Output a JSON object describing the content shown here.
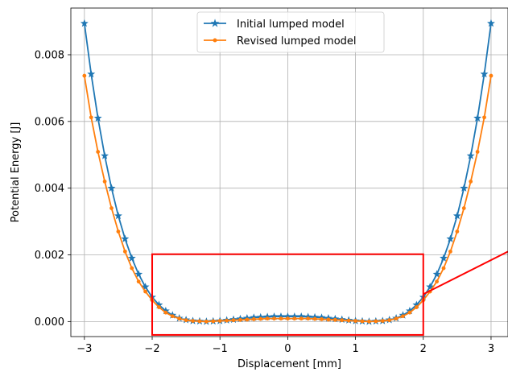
{
  "chart_data": {
    "type": "line",
    "xlabel": "Displacement [mm]",
    "ylabel": "Potential Energy [J]",
    "xlim": [
      -3.2,
      3.25
    ],
    "ylim": [
      -0.00045,
      0.0094
    ],
    "xticks": [
      -3,
      -2,
      -1,
      0,
      1,
      2,
      3
    ],
    "xtick_labels": [
      "−3",
      "−2",
      "−1",
      "0",
      "1",
      "2",
      "3"
    ],
    "yticks": [
      0.0,
      0.002,
      0.004,
      0.006,
      0.008
    ],
    "ytick_labels": [
      "0.000",
      "0.002",
      "0.004",
      "0.006",
      "0.008"
    ],
    "grid": true,
    "legend_position": "top-center",
    "x_points": [
      -3.0,
      -2.9,
      -2.8,
      -2.7,
      -2.6,
      -2.5,
      -2.4,
      -2.3,
      -2.2,
      -2.1,
      -2.0,
      -1.9,
      -1.8,
      -1.7,
      -1.6,
      -1.5,
      -1.4,
      -1.3,
      -1.2,
      -1.1,
      -1.0,
      -0.9,
      -0.8,
      -0.7,
      -0.6,
      -0.5,
      -0.4,
      -0.3,
      -0.2,
      -0.1,
      0.0,
      0.1,
      0.2,
      0.3,
      0.4,
      0.5,
      0.6,
      0.7,
      0.8,
      0.9,
      1.0,
      1.1,
      1.2,
      1.3,
      1.4,
      1.5,
      1.6,
      1.7,
      1.8,
      1.9,
      2.0,
      2.1,
      2.2,
      2.3,
      2.4,
      2.5,
      2.6,
      2.7,
      2.8,
      2.9,
      3.0
    ],
    "series": [
      {
        "name": "Initial lumped model",
        "color": "#1f77b4",
        "marker": "star",
        "values": [
          0.00894,
          0.00742,
          0.0061,
          0.00497,
          0.004,
          0.00317,
          0.00248,
          0.0019,
          0.00142,
          0.00104,
          0.00073,
          0.0005,
          0.00032,
          0.00019,
          0.0001,
          5e-05,
          2e-05,
          1e-05,
          0.0,
          1e-05,
          2e-05,
          4e-05,
          6e-05,
          8e-05,
          0.0001,
          0.00012,
          0.00013,
          0.00014,
          0.00015,
          0.00015,
          0.00015,
          0.00015,
          0.00015,
          0.00014,
          0.00013,
          0.00012,
          0.0001,
          8e-05,
          6e-05,
          4e-05,
          2e-05,
          1e-05,
          0.0,
          1e-05,
          2e-05,
          5e-05,
          0.0001,
          0.00019,
          0.00032,
          0.0005,
          0.00073,
          0.00104,
          0.00142,
          0.0019,
          0.00248,
          0.00317,
          0.004,
          0.00497,
          0.0061,
          0.00742,
          0.00894
        ]
      },
      {
        "name": "Revised lumped model",
        "color": "#ff7f0e",
        "marker": "dot",
        "values": [
          0.00737,
          0.00612,
          0.00509,
          0.0042,
          0.0034,
          0.0027,
          0.0021,
          0.0016,
          0.0012,
          0.0009,
          0.00064,
          0.00043,
          0.00027,
          0.00016,
          9e-05,
          4e-05,
          2e-05,
          1e-05,
          0.0,
          1e-05,
          2e-05,
          3e-05,
          4e-05,
          5e-05,
          6e-05,
          7e-05,
          8e-05,
          9e-05,
          9e-05,
          9e-05,
          9e-05,
          9e-05,
          9e-05,
          9e-05,
          8e-05,
          7e-05,
          6e-05,
          5e-05,
          4e-05,
          3e-05,
          2e-05,
          1e-05,
          0.0,
          1e-05,
          2e-05,
          4e-05,
          9e-05,
          0.00016,
          0.00027,
          0.00043,
          0.00064,
          0.0009,
          0.0012,
          0.0016,
          0.0021,
          0.0027,
          0.0034,
          0.0042,
          0.00509,
          0.00612,
          0.00737
        ]
      }
    ],
    "annotations": {
      "zoom_box": {
        "x0": -2.0,
        "x1": 2.0,
        "y0": -0.0004,
        "y1": 0.00202,
        "color": "#ff0000"
      },
      "zoom_connector_color": "#ff0000"
    }
  }
}
